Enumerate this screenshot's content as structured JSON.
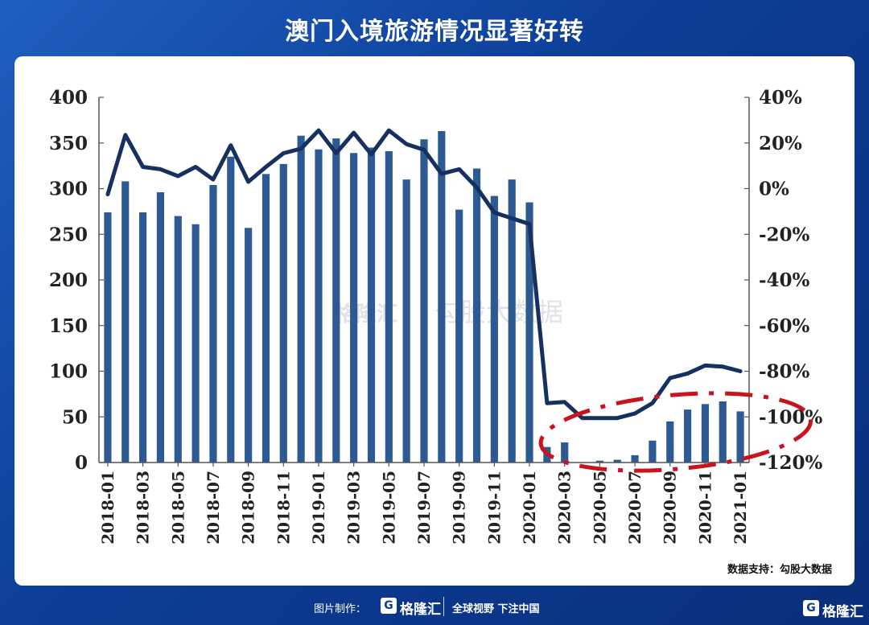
{
  "title": "澳门入境旅游情况显著好转",
  "source": "数据支持：勾股大数据",
  "watermark": {
    "brand": "格隆汇",
    "product": "勾股大数据"
  },
  "footer": {
    "credit": "图片制作：",
    "logo_letter": "G",
    "brand": "格隆汇",
    "slogan": "全球视野 下注中国",
    "corner_brand": "格隆汇"
  },
  "colors": {
    "bar": "#2e5a94",
    "line": "#16305f",
    "highlight": "#c8141e",
    "axis": "#555555"
  },
  "chart_data": {
    "type": "bar",
    "categories": [
      "2018-01",
      "2018-02",
      "2018-03",
      "2018-04",
      "2018-05",
      "2018-06",
      "2018-07",
      "2018-08",
      "2018-09",
      "2018-10",
      "2018-11",
      "2018-12",
      "2019-01",
      "2019-02",
      "2019-03",
      "2019-04",
      "2019-05",
      "2019-06",
      "2019-07",
      "2019-08",
      "2019-09",
      "2019-10",
      "2019-11",
      "2019-12",
      "2020-01",
      "2020-02",
      "2020-03",
      "2020-04",
      "2020-05",
      "2020-06",
      "2020-07",
      "2020-08",
      "2020-09",
      "2020-10",
      "2020-11",
      "2020-12",
      "2021-01"
    ],
    "tick_labels": [
      "2018-01",
      "2018-03",
      "2018-05",
      "2018-07",
      "2018-09",
      "2018-11",
      "2019-01",
      "2019-03",
      "2019-05",
      "2019-07",
      "2019-09",
      "2019-11",
      "2020-01",
      "2020-03",
      "2020-05",
      "2020-07",
      "2020-09",
      "2020-11",
      "2021-01"
    ],
    "series": [
      {
        "type": "bar",
        "axis": "left",
        "values": [
          274,
          308,
          274,
          296,
          270,
          261,
          304,
          335,
          257,
          316,
          327,
          358,
          343,
          355,
          339,
          345,
          341,
          310,
          354,
          363,
          277,
          322,
          292,
          310,
          285,
          17,
          22,
          0,
          2,
          3,
          8,
          24,
          45,
          58,
          64,
          67,
          56
        ]
      },
      {
        "type": "line",
        "axis": "right",
        "values": [
          -2.5,
          23.5,
          9.5,
          8.5,
          5.5,
          9.5,
          4,
          19,
          3,
          9.5,
          15.5,
          17.5,
          25.5,
          15.5,
          24.5,
          15,
          25.5,
          19.5,
          17,
          6.5,
          8.5,
          0.5,
          -10.5,
          -13,
          -15.5,
          -94,
          -93.5,
          -100.5,
          -100.5,
          -100.5,
          -98.5,
          -94,
          -83,
          -81,
          -77.5,
          -78,
          -80
        ]
      }
    ],
    "y_left": {
      "ylim": [
        0,
        400
      ],
      "ticks": [
        "0",
        "50",
        "100",
        "150",
        "200",
        "250",
        "300",
        "350",
        "400"
      ]
    },
    "y_right": {
      "ylim": [
        -120,
        40
      ],
      "ticks": [
        "-120%",
        "-100%",
        "-80%",
        "-60%",
        "-40%",
        "-20%",
        "0%",
        "20%",
        "40%"
      ]
    },
    "annotation": "dashed red ellipse highlighting 2020-04 to 2021-01 recovery",
    "grid": false,
    "legend": "none"
  }
}
